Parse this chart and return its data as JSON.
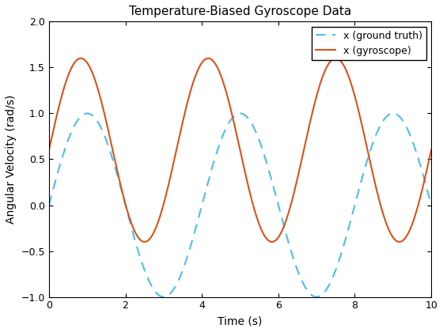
{
  "title": "Temperature-Biased Gyroscope Data",
  "xlabel": "Time (s)",
  "ylabel": "Angular Velocity (rad/s)",
  "xlim": [
    0,
    10
  ],
  "ylim": [
    -1,
    2
  ],
  "yticks": [
    -1,
    -0.5,
    0,
    0.5,
    1,
    1.5,
    2
  ],
  "xticks": [
    0,
    2,
    4,
    6,
    8,
    10
  ],
  "gt_amplitude": 1.0,
  "gt_frequency": 0.3,
  "gt_phase": -1.2566,
  "gt_bias": 0.0,
  "gyro_amplitude": 1.1,
  "gyro_frequency": 0.3,
  "gyro_phase": 0.0,
  "gyro_bias": 0.5,
  "gt_color": "#4DBEEE",
  "gyro_color": "#D95319",
  "gt_label": "x (ground truth)",
  "gyro_label": "x (gyroscope)",
  "gt_linestyle": "--",
  "gyro_linestyle": "-",
  "linewidth": 1.5,
  "legend_loc": "upper right",
  "background_color": "#ffffff",
  "title_fontsize": 11,
  "axis_label_fontsize": 10
}
